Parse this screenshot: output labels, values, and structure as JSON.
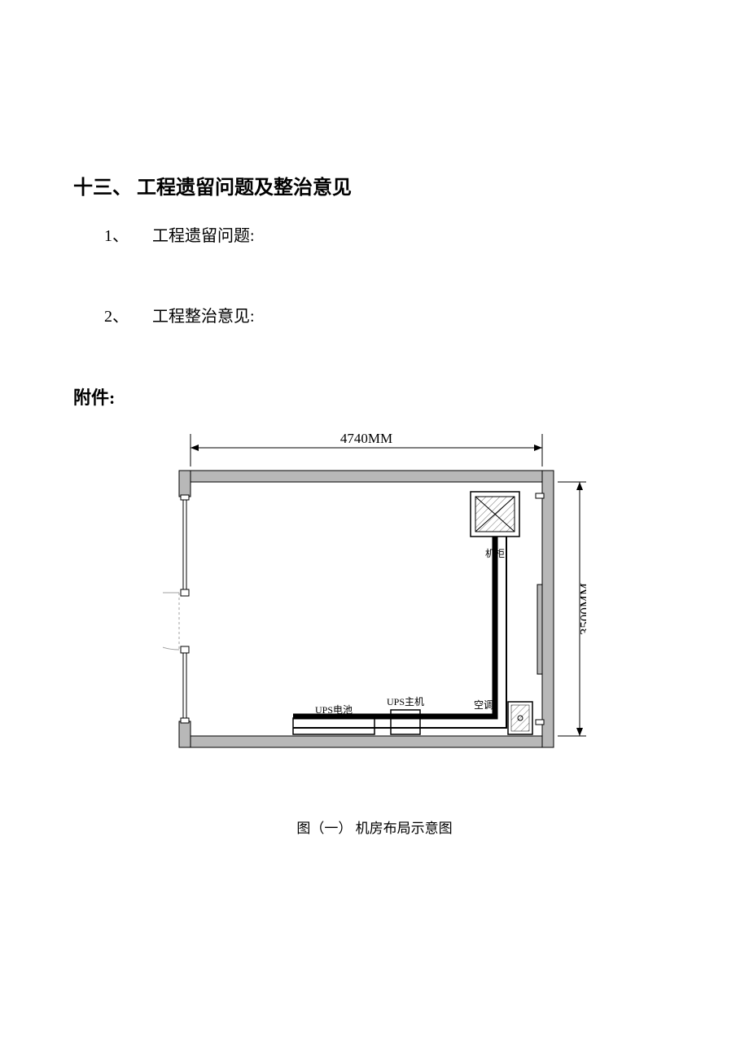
{
  "section": {
    "heading": "十三、 工程遗留问题及整治意见",
    "items": [
      {
        "num": "1、",
        "label": "工程遗留问题:"
      },
      {
        "num": "2、",
        "label": "工程整治意见:"
      }
    ]
  },
  "attachment": {
    "heading": "附件:",
    "caption": "图（一） 机房布局示意图"
  },
  "diagram": {
    "width_label": "4740MM",
    "height_label": "3500MM",
    "equipment": {
      "cabinet": "机柜",
      "ups_battery": "UPS电池",
      "ups_host": "UPS主机",
      "ac": "空调"
    },
    "colors": {
      "wall_fill": "#b8b8b8",
      "wall_stroke": "#000000",
      "cable_stroke": "#000000",
      "hatch_stroke": "#808080",
      "text": "#000000",
      "background": "#ffffff",
      "door_line": "#a0a0a0"
    },
    "layout": {
      "outer_w": 460,
      "outer_h": 340,
      "wall_thickness": 14
    },
    "font": {
      "dim_size": 17,
      "label_size": 12,
      "family": "SimSun"
    }
  }
}
